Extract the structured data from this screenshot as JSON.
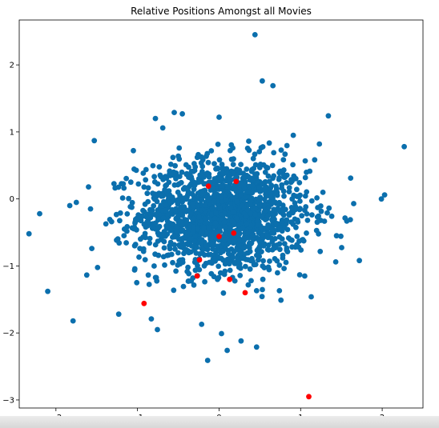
{
  "chart_data": {
    "type": "scatter",
    "title": "Relative Positions Amongst all Movies",
    "xlabel": "",
    "ylabel": "",
    "xlim": [
      -2.45,
      2.5
    ],
    "ylim": [
      -3.12,
      2.67
    ],
    "xticks": [
      -2,
      -1,
      0,
      1,
      2
    ],
    "yticks": [
      -3,
      -2,
      -1,
      0,
      1,
      2
    ],
    "grid": false,
    "colors": {
      "primary": "#1f77b4",
      "highlight": "#ff0000",
      "point_blue": "#0b6fad"
    },
    "highlighted_points": [
      {
        "x": -0.13,
        "y": 0.19
      },
      {
        "x": 0.21,
        "y": 0.26
      },
      {
        "x": 0.18,
        "y": -0.51
      },
      {
        "x": 0.0,
        "y": -0.56
      },
      {
        "x": -0.24,
        "y": -0.91
      },
      {
        "x": -0.27,
        "y": -1.15
      },
      {
        "x": 0.13,
        "y": -1.2
      },
      {
        "x": 0.32,
        "y": -1.4
      },
      {
        "x": -0.92,
        "y": -1.56
      },
      {
        "x": 1.1,
        "y": -2.95
      }
    ],
    "outlier_points": [
      {
        "x": 0.44,
        "y": 2.45
      },
      {
        "x": 0.53,
        "y": 1.76
      },
      {
        "x": 0.66,
        "y": 1.69
      },
      {
        "x": 1.34,
        "y": 1.24
      },
      {
        "x": 0.0,
        "y": 1.22
      },
      {
        "x": -0.55,
        "y": 1.29
      },
      {
        "x": -0.45,
        "y": 1.27
      },
      {
        "x": -0.78,
        "y": 1.2
      },
      {
        "x": -0.69,
        "y": 1.06
      },
      {
        "x": -1.53,
        "y": 0.87
      },
      {
        "x": 2.27,
        "y": 0.78
      },
      {
        "x": 1.99,
        "y": 0.0
      },
      {
        "x": 2.03,
        "y": 0.06
      },
      {
        "x": -2.33,
        "y": -0.52
      },
      {
        "x": -2.2,
        "y": -0.22
      },
      {
        "x": -2.1,
        "y": -1.38
      },
      {
        "x": -1.79,
        "y": -1.82
      },
      {
        "x": -1.83,
        "y": -0.1
      },
      {
        "x": 1.72,
        "y": -0.92
      },
      {
        "x": 1.43,
        "y": -0.94
      },
      {
        "x": 1.44,
        "y": -0.55
      },
      {
        "x": -0.14,
        "y": -2.41
      },
      {
        "x": 0.1,
        "y": -2.26
      },
      {
        "x": 0.46,
        "y": -2.21
      },
      {
        "x": 0.27,
        "y": -2.12
      },
      {
        "x": 0.03,
        "y": -2.01
      },
      {
        "x": -0.83,
        "y": -1.79
      },
      {
        "x": -1.23,
        "y": -1.72
      },
      {
        "x": -1.56,
        "y": -0.74
      },
      {
        "x": -1.6,
        "y": 0.18
      },
      {
        "x": -1.05,
        "y": 0.72
      },
      {
        "x": 0.67,
        "y": 0.69
      },
      {
        "x": 1.23,
        "y": 0.82
      },
      {
        "x": 1.05,
        "y": -1.15
      },
      {
        "x": 0.74,
        "y": -1.37
      }
    ],
    "cluster": {
      "center": [
        0.05,
        -0.25
      ],
      "spread": [
        0.52,
        0.42
      ],
      "count": 1650
    }
  }
}
